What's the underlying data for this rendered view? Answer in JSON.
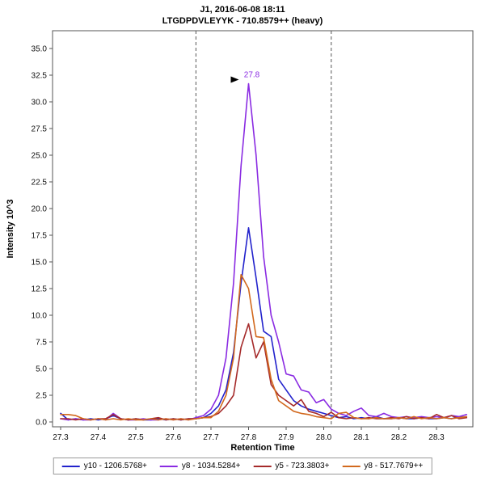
{
  "chart_data": {
    "type": "line",
    "title": "J1, 2016-06-08 18:11",
    "subtitle": "LTGDPDVLEYYK - 710.8579++ (heavy)",
    "xlabel": "Retention Time",
    "ylabel": "Intensity 10^3",
    "xlim": [
      27.28,
      28.39
    ],
    "ylim": [
      0,
      36.6
    ],
    "grid": false,
    "legend_position": "bottom",
    "x_ticks": [
      27.3,
      27.4,
      27.5,
      27.6,
      27.7,
      27.8,
      27.9,
      28.0,
      28.1,
      28.2,
      28.3
    ],
    "y_ticks": [
      0.0,
      2.5,
      5.0,
      7.5,
      10.0,
      12.5,
      15.0,
      17.5,
      20.0,
      22.5,
      25.0,
      27.5,
      30.0,
      32.5,
      35.0
    ],
    "boundaries": [
      27.66,
      28.02
    ],
    "boundary_line_color": "#555555",
    "peak_annotation": {
      "label": "27.8",
      "x": 27.8,
      "y": 31.7,
      "color": "#8a2be2",
      "pointer_color": "#000000"
    },
    "x": [
      27.3,
      27.32,
      27.34,
      27.36,
      27.38,
      27.4,
      27.42,
      27.44,
      27.46,
      27.48,
      27.5,
      27.52,
      27.54,
      27.56,
      27.58,
      27.6,
      27.62,
      27.64,
      27.66,
      27.68,
      27.7,
      27.72,
      27.74,
      27.76,
      27.78,
      27.8,
      27.82,
      27.84,
      27.86,
      27.88,
      27.9,
      27.92,
      27.94,
      27.96,
      27.98,
      28.0,
      28.02,
      28.04,
      28.06,
      28.08,
      28.1,
      28.12,
      28.14,
      28.16,
      28.18,
      28.2,
      28.22,
      28.24,
      28.26,
      28.28,
      28.3,
      28.32,
      28.34,
      28.36,
      28.38
    ],
    "series": [
      {
        "name": "y10 - 1206.5768+",
        "color": "#2222cc",
        "values": [
          0.8,
          0.2,
          0.3,
          0.2,
          0.3,
          0.2,
          0.3,
          0.6,
          0.3,
          0.2,
          0.3,
          0.2,
          0.2,
          0.3,
          0.2,
          0.3,
          0.2,
          0.3,
          0.3,
          0.4,
          0.8,
          1.5,
          3.0,
          6.5,
          13.0,
          18.2,
          13.5,
          8.5,
          8.0,
          4.0,
          3.0,
          2.0,
          1.5,
          1.2,
          1.0,
          0.8,
          0.6,
          0.4,
          0.5,
          0.3,
          0.4,
          0.3,
          0.5,
          0.3,
          0.3,
          0.4,
          0.3,
          0.3,
          0.4,
          0.3,
          0.3,
          0.4,
          0.3,
          0.5,
          0.4
        ]
      },
      {
        "name": "y8 - 1034.5284+",
        "color": "#8a2be2",
        "values": [
          0.3,
          0.2,
          0.3,
          0.2,
          0.2,
          0.3,
          0.2,
          0.8,
          0.3,
          0.2,
          0.2,
          0.3,
          0.2,
          0.2,
          0.3,
          0.2,
          0.3,
          0.2,
          0.4,
          0.6,
          1.2,
          2.5,
          6.0,
          13.0,
          24.0,
          31.7,
          25.0,
          15.5,
          10.0,
          7.5,
          4.5,
          4.3,
          3.0,
          2.8,
          1.8,
          2.1,
          1.2,
          0.8,
          0.6,
          1.0,
          1.3,
          0.6,
          0.5,
          0.8,
          0.5,
          0.4,
          0.5,
          0.4,
          0.5,
          0.4,
          0.5,
          0.4,
          0.6,
          0.5,
          0.7
        ]
      },
      {
        "name": "y5 - 723.3803+",
        "color": "#a52a2a",
        "values": [
          0.3,
          0.3,
          0.2,
          0.3,
          0.2,
          0.3,
          0.3,
          0.7,
          0.3,
          0.2,
          0.3,
          0.2,
          0.3,
          0.4,
          0.2,
          0.3,
          0.2,
          0.3,
          0.3,
          0.4,
          0.5,
          0.8,
          1.5,
          2.5,
          7.0,
          9.2,
          6.0,
          7.5,
          3.5,
          2.5,
          2.0,
          1.5,
          2.1,
          1.0,
          0.8,
          0.5,
          0.9,
          0.4,
          0.3,
          0.4,
          0.3,
          0.4,
          0.3,
          0.3,
          0.4,
          0.3,
          0.5,
          0.3,
          0.4,
          0.3,
          0.7,
          0.4,
          0.6,
          0.3,
          0.4
        ]
      },
      {
        "name": "y8 - 517.7679++",
        "color": "#d2691e",
        "values": [
          0.7,
          0.7,
          0.6,
          0.3,
          0.2,
          0.3,
          0.2,
          0.3,
          0.2,
          0.3,
          0.2,
          0.2,
          0.3,
          0.2,
          0.3,
          0.2,
          0.3,
          0.2,
          0.3,
          0.4,
          0.4,
          1.0,
          2.5,
          6.0,
          13.8,
          12.5,
          8.0,
          7.9,
          4.0,
          2.0,
          1.5,
          1.0,
          0.8,
          0.7,
          0.5,
          0.4,
          0.3,
          0.8,
          0.9,
          0.4,
          0.3,
          0.3,
          0.4,
          0.3,
          0.3,
          0.4,
          0.3,
          0.5,
          0.3,
          0.4,
          0.3,
          0.4,
          0.3,
          0.4,
          0.5
        ]
      }
    ]
  }
}
